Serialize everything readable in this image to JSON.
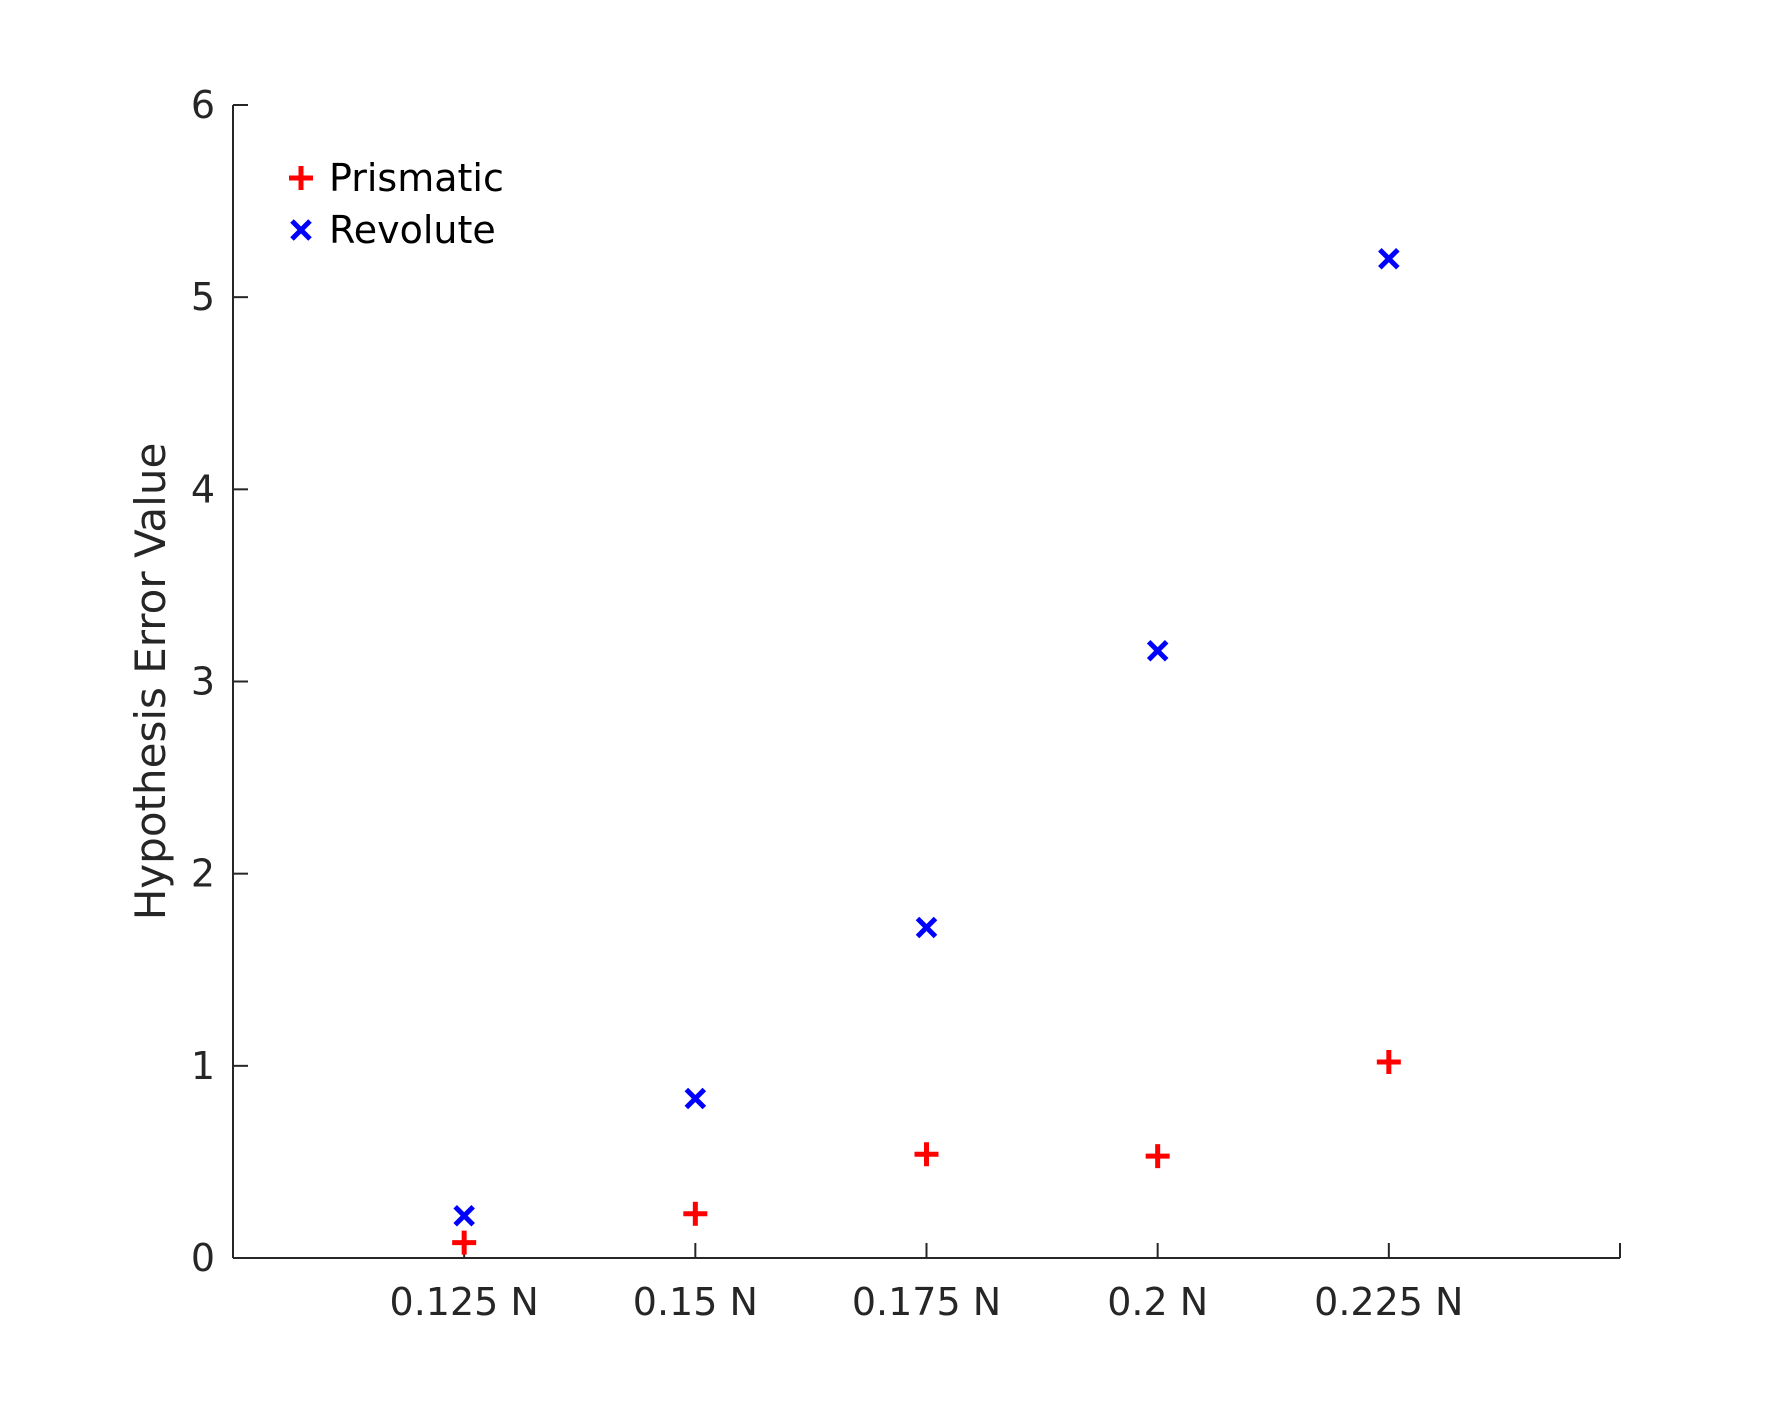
{
  "chart_data": {
    "type": "scatter",
    "title": "",
    "xlabel": "",
    "ylabel": "Hypothesis Error Value",
    "categories": [
      "0.125 N",
      "0.15 N",
      "0.175 N",
      "0.2 N",
      "0.225 N"
    ],
    "x_range": [
      "0.100 N",
      "0.250 N"
    ],
    "ylim": [
      0,
      6
    ],
    "yticks": [
      "0",
      "1",
      "2",
      "3",
      "4",
      "5",
      "6"
    ],
    "grid": false,
    "legend_position": "top-left",
    "series": [
      {
        "name": "Prismatic",
        "marker": "plus",
        "color": "#ff0000",
        "values": [
          0.08,
          0.23,
          0.54,
          0.53,
          1.02
        ]
      },
      {
        "name": "Revolute",
        "marker": "cross",
        "color": "#0000ff",
        "values": [
          0.22,
          0.83,
          1.72,
          3.16,
          5.2
        ]
      }
    ]
  }
}
